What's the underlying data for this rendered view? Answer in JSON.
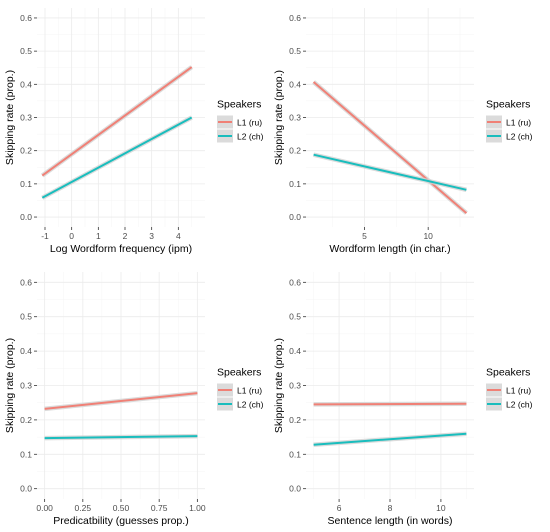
{
  "colors": {
    "l1": "#f08076",
    "l2": "#19bdbd",
    "ci": "#d2d2d2"
  },
  "chart_data": [
    {
      "type": "line",
      "xlabel": "Log Wordform frequency (ipm)",
      "ylabel": "Skipping rate (prop.)",
      "xlim": [
        -1.3,
        5.0
      ],
      "ylim": [
        -0.03,
        0.63
      ],
      "x_ticks": [
        -1,
        0,
        1,
        2,
        3,
        4
      ],
      "y_ticks": [
        0.0,
        0.1,
        0.2,
        0.3,
        0.4,
        0.5,
        0.6
      ],
      "y_tick_labels": [
        "0.0",
        "0.1",
        "0.2",
        "0.3",
        "0.4",
        "0.5",
        "0.6"
      ],
      "legend": {
        "title": "Speakers",
        "entries": [
          "L1 (ru)",
          "L2 (ch)"
        ],
        "position": "right"
      },
      "grid": true,
      "series": [
        {
          "name": "L1 (ru)",
          "x": [
            -1.1,
            4.5
          ],
          "y": [
            0.125,
            0.452
          ]
        },
        {
          "name": "L2 (ch)",
          "x": [
            -1.1,
            4.5
          ],
          "y": [
            0.058,
            0.3
          ]
        }
      ]
    },
    {
      "type": "line",
      "xlabel": "Wordform length (in char.)",
      "ylabel": "Skipping rate (prop.)",
      "xlim": [
        0.4,
        13.6
      ],
      "ylim": [
        -0.03,
        0.63
      ],
      "x_ticks": [
        5,
        10
      ],
      "y_ticks": [
        0.0,
        0.1,
        0.2,
        0.3,
        0.4,
        0.5,
        0.6
      ],
      "y_tick_labels": [
        "0.0",
        "0.1",
        "0.2",
        "0.3",
        "0.4",
        "0.5",
        "0.6"
      ],
      "legend": {
        "title": "Speakers",
        "entries": [
          "L1 (ru)",
          "L2 (ch)"
        ],
        "position": "right"
      },
      "grid": true,
      "series": [
        {
          "name": "L1 (ru)",
          "x": [
            1,
            13
          ],
          "y": [
            0.407,
            0.012
          ]
        },
        {
          "name": "L2 (ch)",
          "x": [
            1,
            13
          ],
          "y": [
            0.188,
            0.082
          ]
        }
      ]
    },
    {
      "type": "line",
      "xlabel": "Predicatbility (guesses prop.)",
      "ylabel": "Skipping rate (prop.)",
      "xlim": [
        -0.05,
        1.05
      ],
      "ylim": [
        -0.03,
        0.63
      ],
      "x_ticks": [
        0.0,
        0.25,
        0.5,
        0.75,
        1.0
      ],
      "x_tick_labels": [
        "0.00",
        "0.25",
        "0.50",
        "0.75",
        "1.00"
      ],
      "y_ticks": [
        0.0,
        0.1,
        0.2,
        0.3,
        0.4,
        0.5,
        0.6
      ],
      "y_tick_labels": [
        "0.0",
        "0.1",
        "0.2",
        "0.3",
        "0.4",
        "0.5",
        "0.6"
      ],
      "legend": {
        "title": "Speakers",
        "entries": [
          "L1 (ru)",
          "L2 (ch)"
        ],
        "position": "right"
      },
      "grid": true,
      "series": [
        {
          "name": "L1 (ru)",
          "x": [
            0,
            1
          ],
          "y": [
            0.232,
            0.278
          ]
        },
        {
          "name": "L2 (ch)",
          "x": [
            0,
            1
          ],
          "y": [
            0.147,
            0.153
          ]
        }
      ]
    },
    {
      "type": "line",
      "xlabel": "Sentence length (in words)",
      "ylabel": "Skipping rate (prop.)",
      "xlim": [
        4.7,
        11.3
      ],
      "ylim": [
        -0.03,
        0.63
      ],
      "x_ticks": [
        6,
        8,
        10
      ],
      "y_ticks": [
        0.0,
        0.1,
        0.2,
        0.3,
        0.4,
        0.5,
        0.6
      ],
      "y_tick_labels": [
        "0.0",
        "0.1",
        "0.2",
        "0.3",
        "0.4",
        "0.5",
        "0.6"
      ],
      "legend": {
        "title": "Speakers",
        "entries": [
          "L1 (ru)",
          "L2 (ch)"
        ],
        "position": "right"
      },
      "grid": true,
      "series": [
        {
          "name": "L1 (ru)",
          "x": [
            5,
            11
          ],
          "y": [
            0.245,
            0.247
          ]
        },
        {
          "name": "L2 (ch)",
          "x": [
            5,
            11
          ],
          "y": [
            0.128,
            0.16
          ]
        }
      ]
    }
  ]
}
